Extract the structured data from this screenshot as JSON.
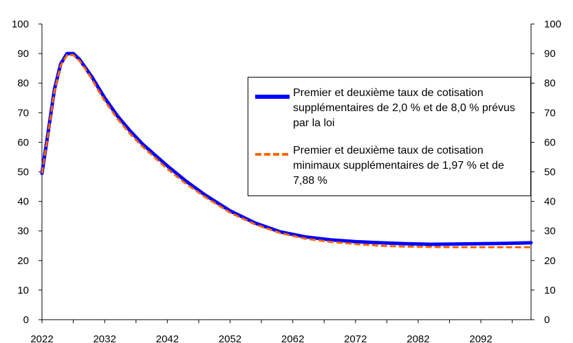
{
  "chart_data": {
    "type": "line",
    "title": "",
    "xlabel": "",
    "ylabel": "",
    "xlim": [
      2022,
      2100
    ],
    "ylim": [
      0,
      100
    ],
    "x_ticks": [
      "2022",
      "2032",
      "2042",
      "2052",
      "2062",
      "2072",
      "2082",
      "2092"
    ],
    "y_ticks": [
      "0",
      "10",
      "20",
      "30",
      "40",
      "50",
      "60",
      "70",
      "80",
      "90",
      "100"
    ],
    "grid": false,
    "secondary_y_axis": true,
    "legend": "inside-right",
    "series": [
      {
        "name": "Premier et deuxième taux de cotisation supplémentaires de 2,0 % et de 8,0 % prévus par la loi",
        "color": "#0000ff",
        "style": "solid",
        "x": [
          2022,
          2023,
          2024,
          2025,
          2026,
          2027,
          2028,
          2029,
          2030,
          2031,
          2032,
          2034,
          2036,
          2038,
          2040,
          2042,
          2045,
          2048,
          2052,
          2056,
          2060,
          2064,
          2068,
          2072,
          2076,
          2080,
          2084,
          2088,
          2092,
          2096,
          2100
        ],
        "values": [
          49.5,
          63.5,
          78,
          86.5,
          90,
          90,
          88,
          85,
          82,
          78.5,
          75,
          69,
          64,
          59.5,
          55.7,
          52,
          46.8,
          42.2,
          36.8,
          32.7,
          29.7,
          28,
          27,
          26.4,
          26,
          25.7,
          25.5,
          25.6,
          25.7,
          25.8,
          26
        ]
      },
      {
        "name": "Premier et deuxième taux de cotisation minimaux supplémentaires de 1,97 % et de 7,88 %",
        "color": "#ff6600",
        "style": "dashed",
        "x": [
          2022,
          2023,
          2024,
          2025,
          2026,
          2027,
          2028,
          2029,
          2030,
          2031,
          2032,
          2034,
          2036,
          2038,
          2040,
          2042,
          2045,
          2048,
          2052,
          2056,
          2060,
          2064,
          2068,
          2072,
          2076,
          2080,
          2084,
          2088,
          2092,
          2096,
          2100
        ],
        "values": [
          49.5,
          63,
          77.5,
          86,
          89.5,
          89.5,
          87.5,
          84.5,
          81.2,
          77.5,
          74,
          68,
          63,
          58.6,
          54.8,
          51,
          45.9,
          41.5,
          36.2,
          32.2,
          29.3,
          27.4,
          26.3,
          25.6,
          25,
          24.7,
          24.6,
          24.5,
          24.5,
          24.5,
          24.5
        ]
      }
    ]
  }
}
